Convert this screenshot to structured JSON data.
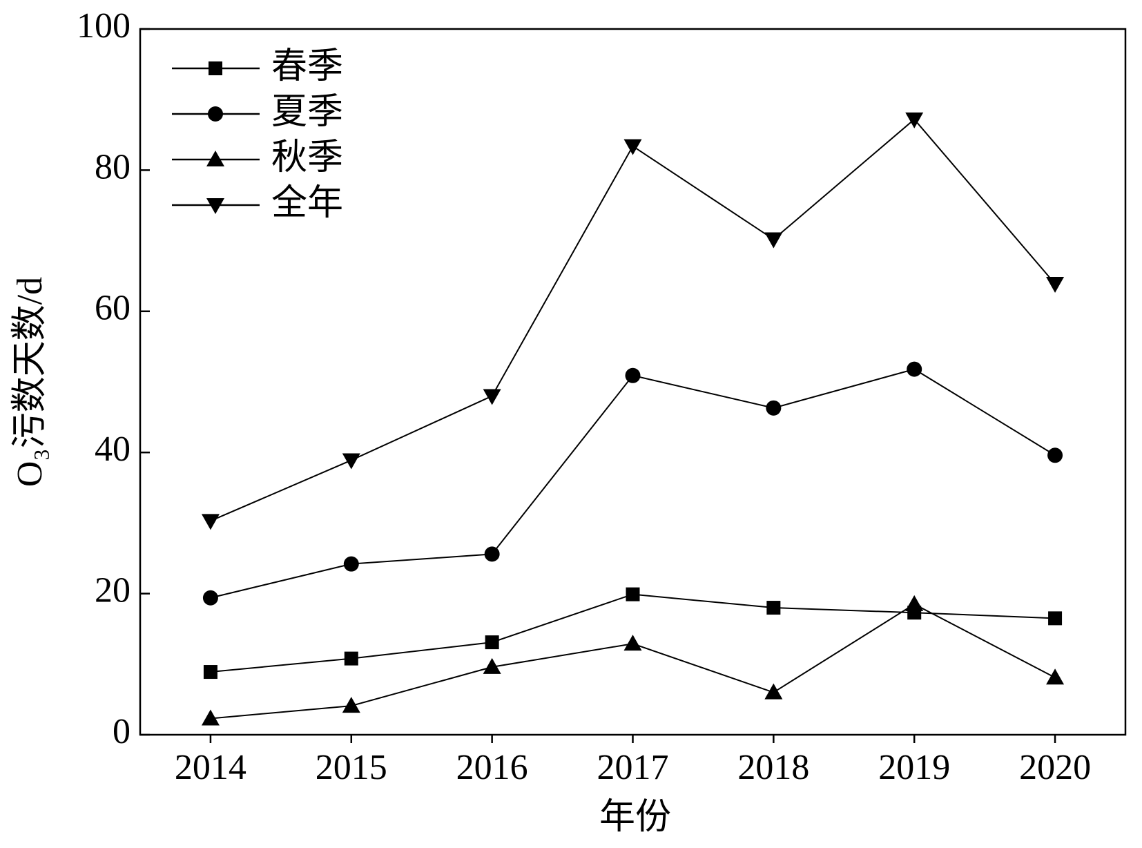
{
  "chart_data": {
    "type": "line",
    "x_label": "年份",
    "y_label": "O₃污数天数/d",
    "categories": [
      "2014",
      "2015",
      "2016",
      "2017",
      "2018",
      "2019",
      "2020"
    ],
    "ylim": [
      0,
      100
    ],
    "yticks": [
      0,
      20,
      40,
      60,
      80,
      100
    ],
    "legend": "upper left",
    "series": [
      {
        "name": "春季",
        "color": "#000000",
        "marker": "square",
        "values": [
          8.9,
          10.8,
          13.1,
          19.9,
          18.0,
          17.3,
          16.5
        ]
      },
      {
        "name": "夏季",
        "color": "#000000",
        "marker": "circle",
        "values": [
          19.4,
          24.2,
          25.6,
          50.9,
          46.3,
          51.8,
          39.6
        ]
      },
      {
        "name": "秋季",
        "color": "#000000",
        "marker": "triangle-up",
        "values": [
          2.3,
          4.1,
          9.6,
          12.9,
          6.0,
          18.5,
          8.1
        ]
      },
      {
        "name": "全年",
        "color": "#000000",
        "marker": "triangle-down",
        "values": [
          30.3,
          38.9,
          48.0,
          83.4,
          70.2,
          87.2,
          63.9
        ]
      }
    ]
  }
}
